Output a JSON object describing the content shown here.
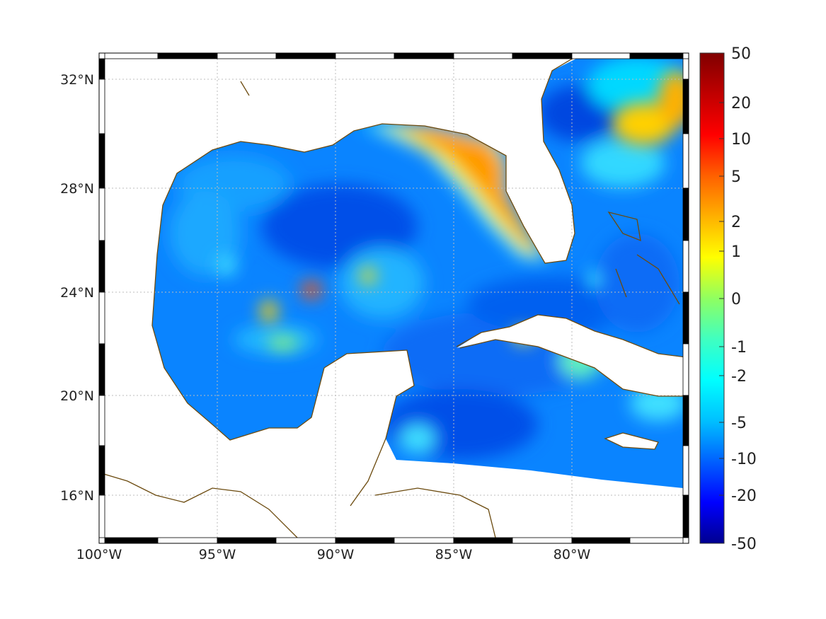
{
  "map": {
    "lon_labels": [
      "100°W",
      "95°W",
      "90°W",
      "85°W",
      "80°W"
    ],
    "lat_labels": [
      "32°N",
      "28°N",
      "24°N",
      "20°N",
      "16°N"
    ],
    "colors": {
      "coast": "#6b4a0e",
      "grid": "#b8b8b8",
      "water_base": "#0a84ff"
    }
  },
  "colorbar": {
    "ticks": [
      "50",
      "20",
      "10",
      "5",
      "2",
      "1",
      "0",
      "-1",
      "-2",
      "-5",
      "-10",
      "-20",
      "-50"
    ],
    "colormap": [
      "#00008f",
      "#0000ff",
      "#0060ff",
      "#00c0ff",
      "#00ffff",
      "#40ffc0",
      "#90ff60",
      "#ffff00",
      "#ffb000",
      "#ff6000",
      "#ff0000",
      "#c00000",
      "#800000"
    ]
  }
}
